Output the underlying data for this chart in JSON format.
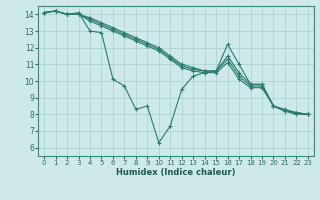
{
  "xlabel": "Humidex (Indice chaleur)",
  "xlim": [
    -0.5,
    23.5
  ],
  "ylim": [
    5.5,
    14.5
  ],
  "xticks": [
    0,
    1,
    2,
    3,
    4,
    5,
    6,
    7,
    8,
    9,
    10,
    11,
    12,
    13,
    14,
    15,
    16,
    17,
    18,
    19,
    20,
    21,
    22,
    23
  ],
  "yticks": [
    6,
    7,
    8,
    9,
    10,
    11,
    12,
    13,
    14
  ],
  "bg_color": "#ceeae8",
  "grid_color": "#aed4d0",
  "line_color": "#2a7a6e",
  "series": [
    {
      "x": [
        0,
        1,
        2,
        3,
        4,
        5,
        6,
        7,
        8,
        9,
        10,
        11,
        12,
        13,
        14,
        15,
        16,
        17,
        18,
        19,
        20,
        21,
        22,
        23
      ],
      "y": [
        14.1,
        14.2,
        14.0,
        14.1,
        13.0,
        12.9,
        10.1,
        9.7,
        8.3,
        8.5,
        6.3,
        7.3,
        9.5,
        10.3,
        10.5,
        10.6,
        12.2,
        11.0,
        9.8,
        9.8,
        8.5,
        8.3,
        8.1,
        8.0
      ]
    },
    {
      "x": [
        0,
        1,
        2,
        3,
        4,
        5,
        6,
        7,
        8,
        9,
        10,
        11,
        12,
        13,
        14,
        15,
        16,
        17,
        18,
        19,
        20,
        21,
        22,
        23
      ],
      "y": [
        14.1,
        14.2,
        14.0,
        14.0,
        13.8,
        13.5,
        13.2,
        12.9,
        12.6,
        12.3,
        12.0,
        11.5,
        11.0,
        10.8,
        10.6,
        10.6,
        11.5,
        10.5,
        9.8,
        9.8,
        8.5,
        8.2,
        8.1,
        8.0
      ]
    },
    {
      "x": [
        0,
        1,
        2,
        3,
        4,
        5,
        6,
        7,
        8,
        9,
        10,
        11,
        12,
        13,
        14,
        15,
        16,
        17,
        18,
        19,
        20,
        21,
        22,
        23
      ],
      "y": [
        14.1,
        14.2,
        14.0,
        14.0,
        13.7,
        13.4,
        13.1,
        12.8,
        12.5,
        12.2,
        11.9,
        11.4,
        10.9,
        10.7,
        10.6,
        10.6,
        11.3,
        10.3,
        9.7,
        9.7,
        8.5,
        8.2,
        8.1,
        8.0
      ]
    },
    {
      "x": [
        0,
        1,
        2,
        3,
        4,
        5,
        6,
        7,
        8,
        9,
        10,
        11,
        12,
        13,
        14,
        15,
        16,
        17,
        18,
        19,
        20,
        21,
        22,
        23
      ],
      "y": [
        14.1,
        14.2,
        14.0,
        14.0,
        13.6,
        13.3,
        13.0,
        12.7,
        12.4,
        12.1,
        11.8,
        11.3,
        10.8,
        10.6,
        10.5,
        10.5,
        11.1,
        10.1,
        9.6,
        9.6,
        8.5,
        8.2,
        8.0,
        8.0
      ]
    }
  ]
}
